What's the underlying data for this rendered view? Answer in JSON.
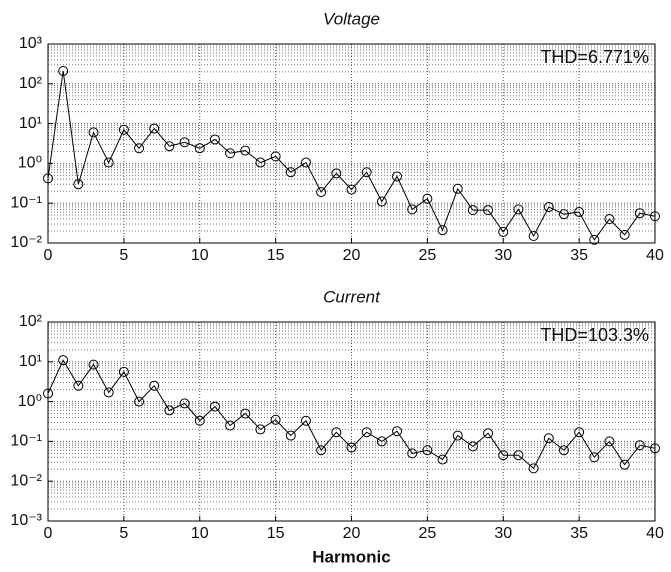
{
  "chart_data": [
    {
      "type": "line",
      "title": "Voltage",
      "annotation": "THD=6.771%",
      "log_y": true,
      "grid": true,
      "color": "#000000",
      "x": [
        0,
        1,
        2,
        3,
        4,
        5,
        6,
        7,
        8,
        9,
        10,
        11,
        12,
        13,
        14,
        15,
        16,
        17,
        18,
        19,
        20,
        21,
        22,
        23,
        24,
        25,
        26,
        27,
        28,
        29,
        30,
        31,
        32,
        33,
        34,
        35,
        36,
        37,
        38,
        39,
        40
      ],
      "values": [
        0.42,
        210,
        0.3,
        6,
        1.05,
        7,
        2.4,
        7.5,
        2.7,
        3.4,
        2.4,
        4,
        1.8,
        2.1,
        1.05,
        1.5,
        0.6,
        1.05,
        0.19,
        0.56,
        0.22,
        0.6,
        0.11,
        0.47,
        0.07,
        0.13,
        0.021,
        0.23,
        0.067,
        0.067,
        0.019,
        0.07,
        0.015,
        0.08,
        0.053,
        0.06,
        0.012,
        0.04,
        0.016,
        0.056,
        0.047
      ],
      "xlim": [
        0,
        40
      ],
      "xticks": [
        0,
        5,
        10,
        15,
        20,
        25,
        30,
        35,
        40
      ],
      "ylim": [
        0.01,
        1000
      ],
      "yticks": [
        {
          "value": 0.01,
          "label": "10⁻²"
        },
        {
          "value": 0.1,
          "label": "10⁻¹"
        },
        {
          "value": 1,
          "label": "10⁰"
        },
        {
          "value": 10,
          "label": "10¹"
        },
        {
          "value": 100,
          "label": "10²"
        },
        {
          "value": 1000,
          "label": "10³"
        }
      ]
    },
    {
      "type": "line",
      "title": "Current",
      "annotation": "THD=103.3%",
      "xlabel": "Harmonic",
      "log_y": true,
      "grid": true,
      "color": "#000000",
      "x": [
        0,
        1,
        2,
        3,
        4,
        5,
        6,
        7,
        8,
        9,
        10,
        11,
        12,
        13,
        14,
        15,
        16,
        17,
        18,
        19,
        20,
        21,
        22,
        23,
        24,
        25,
        26,
        27,
        28,
        29,
        30,
        31,
        32,
        33,
        34,
        35,
        36,
        37,
        38,
        39,
        40
      ],
      "values": [
        1.6,
        11,
        2.5,
        8.5,
        1.7,
        5.6,
        1.0,
        2.5,
        0.6,
        0.9,
        0.33,
        0.75,
        0.25,
        0.5,
        0.2,
        0.35,
        0.14,
        0.33,
        0.06,
        0.17,
        0.07,
        0.17,
        0.1,
        0.18,
        0.05,
        0.06,
        0.035,
        0.14,
        0.075,
        0.16,
        0.045,
        0.045,
        0.021,
        0.12,
        0.06,
        0.17,
        0.04,
        0.1,
        0.026,
        0.08,
        0.067
      ],
      "xlim": [
        0,
        40
      ],
      "xticks": [
        0,
        5,
        10,
        15,
        20,
        25,
        30,
        35,
        40
      ],
      "ylim": [
        0.001,
        100
      ],
      "yticks": [
        {
          "value": 0.001,
          "label": "10⁻³"
        },
        {
          "value": 0.01,
          "label": "10⁻²"
        },
        {
          "value": 0.1,
          "label": "10⁻¹"
        },
        {
          "value": 1,
          "label": "10⁰"
        },
        {
          "value": 10,
          "label": "10¹"
        },
        {
          "value": 100,
          "label": "10²"
        }
      ]
    }
  ]
}
